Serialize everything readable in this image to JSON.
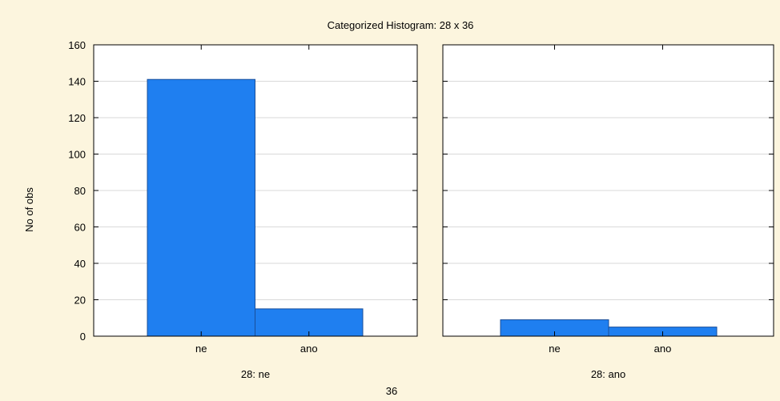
{
  "chart_data": {
    "type": "bar",
    "title": "Categorized Histogram: 28 x 36",
    "ylabel": "No of obs",
    "xlabel": "36",
    "ylim": [
      0,
      160
    ],
    "yticks": [
      "0",
      "20",
      "40",
      "60",
      "80",
      "100",
      "120",
      "140",
      "160"
    ],
    "grid": true,
    "colors": {
      "bar": "#1f7ff0",
      "bar_edge": "#1a4f9a",
      "background": "#fcf5de"
    },
    "panels": [
      {
        "label": "28: ne",
        "categories": [
          "ne",
          "ano"
        ],
        "values": [
          141,
          15
        ]
      },
      {
        "label": "28: ano",
        "categories": [
          "ne",
          "ano"
        ],
        "values": [
          9,
          5
        ]
      }
    ]
  }
}
